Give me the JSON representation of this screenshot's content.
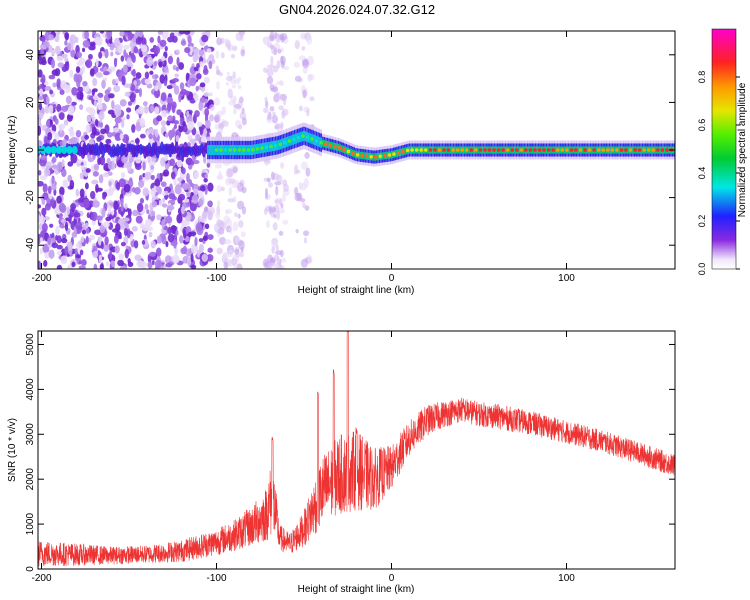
{
  "figure": {
    "title": "GN04.2026.024.07.32.G12"
  },
  "chart_data": [
    {
      "type": "heatmap",
      "title": "GN04.2026.024.07.32.G12",
      "xlabel": "Height of straight line (km)",
      "ylabel": "Frequency (Hz)",
      "xlim": [
        -202,
        162
      ],
      "ylim": [
        -50,
        50
      ],
      "xticks": [
        -200,
        -100,
        0,
        100
      ],
      "yticks": [
        -40,
        -20,
        0,
        20,
        40
      ],
      "grid": false,
      "colorbar": {
        "label": "Normalized spectral amplitude",
        "range": [
          0.0,
          1.0
        ],
        "ticks": [
          0.0,
          0.2,
          0.4,
          0.6,
          0.8
        ],
        "tick_labels": [
          "0.0",
          "0.2",
          "0.4",
          "0.6",
          "0.8"
        ],
        "colormap": "rainbow"
      },
      "features": {
        "noise_region_x": [
          -202,
          -60
        ],
        "central_band_frequency_hz": 0,
        "band_points": [
          [
            -105,
            0
          ],
          [
            -80,
            0
          ],
          [
            -65,
            2
          ],
          [
            -50,
            6
          ],
          [
            -40,
            3
          ],
          [
            -30,
            1
          ],
          [
            -20,
            -2
          ],
          [
            -10,
            -3
          ],
          [
            0,
            -2
          ],
          [
            10,
            0
          ],
          [
            40,
            0
          ],
          [
            80,
            0
          ],
          [
            120,
            0
          ],
          [
            160,
            0
          ]
        ]
      }
    },
    {
      "type": "line",
      "xlabel": "Height of straight line (km)",
      "ylabel": "SNR (10 * v/v)",
      "xlim": [
        -202,
        162
      ],
      "ylim": [
        0,
        5300
      ],
      "xticks": [
        -200,
        -100,
        0,
        100
      ],
      "yticks": [
        0,
        1000,
        2000,
        3000,
        4000,
        5000
      ],
      "grid": false,
      "series": [
        {
          "color": "#ee3333",
          "envelope_x": [
            -202,
            -180,
            -160,
            -140,
            -120,
            -100,
            -90,
            -80,
            -72,
            -68,
            -64,
            -58,
            -50,
            -40,
            -30,
            -20,
            -10,
            0,
            10,
            20,
            30,
            40,
            50,
            60,
            80,
            100,
            120,
            140,
            162
          ],
          "envelope_y": [
            350,
            320,
            300,
            330,
            400,
            600,
            750,
            950,
            1200,
            1600,
            700,
            550,
            900,
            1700,
            2100,
            2200,
            2000,
            2250,
            2900,
            3300,
            3450,
            3550,
            3450,
            3400,
            3250,
            3050,
            2850,
            2600,
            2300
          ],
          "noise": [
            300,
            250,
            200,
            200,
            250,
            300,
            350,
            450,
            600,
            900,
            300,
            250,
            400,
            800,
            900,
            900,
            700,
            500,
            400,
            350,
            300,
            280,
            280,
            280,
            270,
            260,
            250,
            250,
            250
          ],
          "spikes": [
            [
              -68,
              2950
            ],
            [
              -42,
              3950
            ],
            [
              -33,
              4450
            ],
            [
              -25,
              5400
            ],
            [
              -20,
              3150
            ]
          ]
        }
      ]
    }
  ]
}
